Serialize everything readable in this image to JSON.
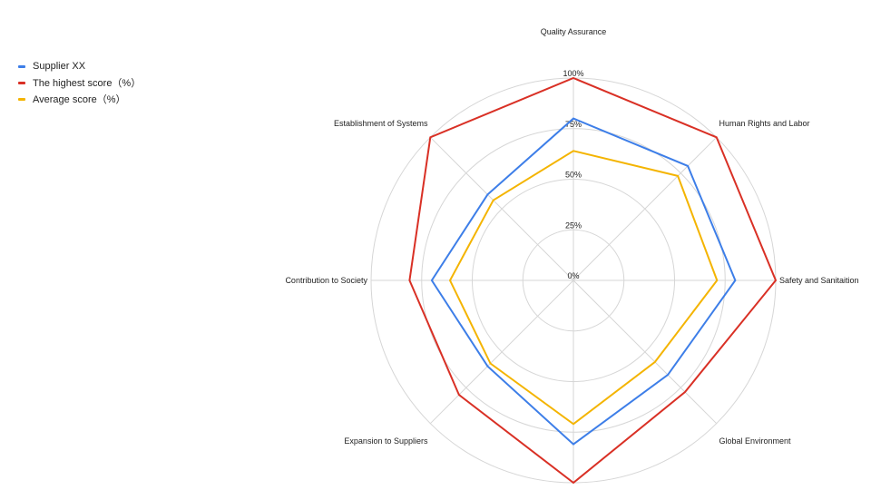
{
  "chart_data": {
    "type": "radar",
    "title": "",
    "categories": [
      "Quality Assurance",
      "Human Rights and Labor",
      "Safety and Sanitaition",
      "Global Environment",
      "",
      "Expansion to Suppliers",
      "Contribution to Society",
      "Establishment of Systems"
    ],
    "radial_ticks": [
      "0%",
      "25%",
      "50%",
      "75%",
      "100%"
    ],
    "rlim": [
      0,
      100
    ],
    "grid": true,
    "legend_position": "top-left",
    "series": [
      {
        "name": "Supplier XX",
        "color": "#3d7ee8",
        "values": [
          80,
          80,
          80,
          66,
          81,
          60,
          70,
          60
        ]
      },
      {
        "name": "The highest score（%）",
        "color": "#d93025",
        "values": [
          100,
          100,
          100,
          78,
          100,
          80,
          81,
          100
        ]
      },
      {
        "name": "Average score（%）",
        "color": "#f4b400",
        "values": [
          64,
          73,
          71,
          57,
          71,
          58,
          61,
          56
        ]
      }
    ]
  }
}
